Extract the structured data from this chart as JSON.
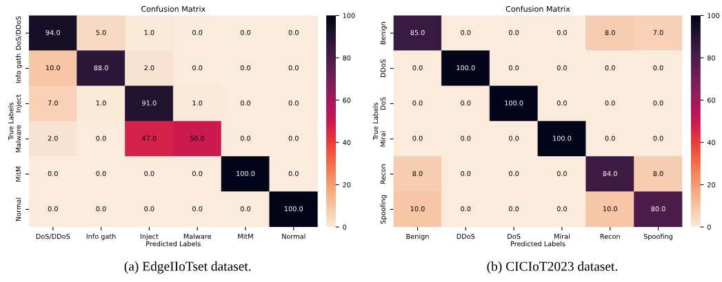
{
  "chart_data": [
    {
      "type": "heatmap",
      "title": "Confusion Matrix",
      "xlabel": "Predicted Labels",
      "ylabel": "True Labels",
      "categories": [
        "DoS/DDoS",
        "Info gath",
        "Inject",
        "Malware",
        "MitM",
        "Normal"
      ],
      "y_categories": [
        "DoS/DDoS",
        "Info gath",
        "Inject",
        "Malware",
        "MitM",
        "Normal"
      ],
      "cells": [
        [
          94.0,
          5.0,
          1.0,
          0.0,
          0.0,
          0.0
        ],
        [
          10.0,
          88.0,
          2.0,
          0.0,
          0.0,
          0.0
        ],
        [
          7.0,
          1.0,
          91.0,
          1.0,
          0.0,
          0.0
        ],
        [
          2.0,
          0.0,
          47.0,
          50.0,
          0.0,
          0.0
        ],
        [
          0.0,
          0.0,
          0.0,
          0.0,
          100.0,
          0.0
        ],
        [
          0.0,
          0.0,
          0.0,
          0.0,
          0.0,
          100.0
        ]
      ],
      "cell_labels": [
        [
          "94.0",
          "5.0",
          "1.0",
          "0.0",
          "0.0",
          "0.0"
        ],
        [
          "10.0",
          "88.0",
          "2.0",
          "0.0",
          "0.0",
          "0.0"
        ],
        [
          "7.0",
          "1.0",
          "91.0",
          "1.0",
          "0.0",
          "0.0"
        ],
        [
          "2.0",
          "0.0",
          "47.0",
          "50.0",
          "0.0",
          "0.0"
        ],
        [
          "0.0",
          "0.0",
          "0.0",
          "0.0",
          "100.0",
          "0.0"
        ],
        [
          "0.0",
          "0.0",
          "0.0",
          "0.0",
          "0.0",
          "100.0"
        ]
      ],
      "data_labels": true,
      "clim": [
        0,
        100
      ],
      "cticks": [
        0,
        20,
        40,
        60,
        80,
        100
      ],
      "annotations": [
        "(a) EdgeIIoTset dataset."
      ]
    },
    {
      "type": "heatmap",
      "title": "Confusion Matrix",
      "xlabel": "Predicted Labels",
      "ylabel": "True Labels",
      "categories": [
        "Benign",
        "DDoS",
        "DoS",
        "Mirai",
        "Recon",
        "Spoofing"
      ],
      "y_categories": [
        "Benign",
        "DDoS",
        "DoS",
        "Mirai",
        "Recon",
        "Spoofing"
      ],
      "cells": [
        [
          85.0,
          0.0,
          0.0,
          0.0,
          8.0,
          7.0
        ],
        [
          0.0,
          100.0,
          0.0,
          0.0,
          0.0,
          0.0
        ],
        [
          0.0,
          0.0,
          100.0,
          0.0,
          0.0,
          0.0
        ],
        [
          0.0,
          0.0,
          0.0,
          100.0,
          0.0,
          0.0
        ],
        [
          8.0,
          0.0,
          0.0,
          0.0,
          84.0,
          8.0
        ],
        [
          10.0,
          0.0,
          0.0,
          0.0,
          10.0,
          80.0
        ]
      ],
      "cell_labels": [
        [
          "85.0",
          "0.0",
          "0.0",
          "0.0",
          "8.0",
          "7.0"
        ],
        [
          "0.0",
          "100.0",
          "0.0",
          "0.0",
          "0.0",
          "0.0"
        ],
        [
          "0.0",
          "0.0",
          "100.0",
          "0.0",
          "0.0",
          "0.0"
        ],
        [
          "0.0",
          "0.0",
          "0.0",
          "100.0",
          "0.0",
          "0.0"
        ],
        [
          "8.0",
          "0.0",
          "0.0",
          "0.0",
          "84.0",
          "8.0"
        ],
        [
          "10.0",
          "0.0",
          "0.0",
          "0.0",
          "10.0",
          "80.0"
        ]
      ],
      "data_labels": true,
      "clim": [
        0,
        100
      ],
      "cticks": [
        0,
        20,
        40,
        60,
        80,
        100
      ],
      "annotations": [
        "(b) CICIoT2023 dataset."
      ]
    }
  ]
}
